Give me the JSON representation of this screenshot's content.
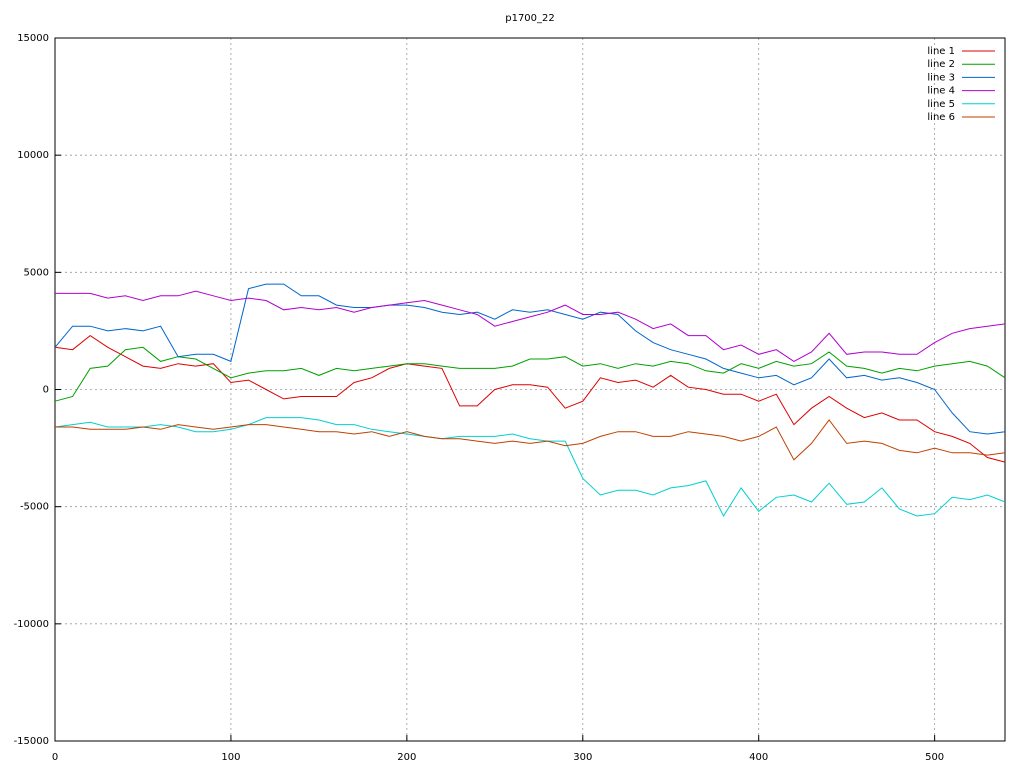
{
  "chart_data": {
    "type": "line",
    "title": "p1700_22",
    "x": [
      0,
      10,
      20,
      30,
      40,
      50,
      60,
      70,
      80,
      90,
      100,
      110,
      120,
      130,
      140,
      150,
      160,
      170,
      180,
      190,
      200,
      210,
      220,
      230,
      240,
      250,
      260,
      270,
      280,
      290,
      300,
      310,
      320,
      330,
      340,
      350,
      360,
      370,
      380,
      390,
      400,
      410,
      420,
      430,
      440,
      450,
      460,
      470,
      480,
      490,
      500,
      510,
      520,
      530,
      540
    ],
    "xlim": [
      0,
      540
    ],
    "ylim": [
      -15000,
      15000
    ],
    "xticks": [
      0,
      100,
      200,
      300,
      400,
      500
    ],
    "yticks": [
      -15000,
      -10000,
      -5000,
      0,
      5000,
      10000,
      15000
    ],
    "grid": true,
    "legend": "top-right",
    "series": [
      {
        "name": "line 1",
        "color": "#dd0000",
        "values": [
          1800,
          1700,
          2300,
          1800,
          1400,
          1000,
          900,
          1100,
          1000,
          1100,
          300,
          400,
          0,
          -400,
          -300,
          -300,
          -300,
          300,
          500,
          900,
          1100,
          1000,
          900,
          -700,
          -700,
          0,
          200,
          200,
          100,
          -800,
          -500,
          500,
          300,
          400,
          100,
          600,
          100,
          0,
          -200,
          -200,
          -500,
          -200,
          -1500,
          -800,
          -300,
          -800,
          -1200,
          -1000,
          -1300,
          -1300,
          -1800,
          -2000,
          -2300,
          -2900,
          -3100
        ]
      },
      {
        "name": "line 2",
        "color": "#00a000",
        "values": [
          -500,
          -300,
          900,
          1000,
          1700,
          1800,
          1200,
          1400,
          1300,
          900,
          500,
          700,
          800,
          800,
          900,
          600,
          900,
          800,
          900,
          1000,
          1100,
          1100,
          1000,
          900,
          900,
          900,
          1000,
          1300,
          1300,
          1400,
          1000,
          1100,
          900,
          1100,
          1000,
          1200,
          1100,
          800,
          700,
          1100,
          900,
          1200,
          1000,
          1100,
          1600,
          1000,
          900,
          700,
          900,
          800,
          1000,
          1100,
          1200,
          1000,
          500
        ]
      },
      {
        "name": "line 3",
        "color": "#0066cc",
        "values": [
          1800,
          2700,
          2700,
          2500,
          2600,
          2500,
          2700,
          1400,
          1500,
          1500,
          1200,
          4300,
          4500,
          4500,
          4000,
          4000,
          3600,
          3500,
          3500,
          3600,
          3600,
          3500,
          3300,
          3200,
          3300,
          3000,
          3400,
          3300,
          3400,
          3200,
          3000,
          3300,
          3200,
          2500,
          2000,
          1700,
          1500,
          1300,
          900,
          700,
          500,
          600,
          200,
          500,
          1300,
          500,
          600,
          400,
          500,
          300,
          0,
          -1000,
          -1800,
          -1900,
          -1800
        ]
      },
      {
        "name": "line 4",
        "color": "#b000d0",
        "values": [
          4100,
          4100,
          4100,
          3900,
          4000,
          3800,
          4000,
          4000,
          4200,
          4000,
          3800,
          3900,
          3800,
          3400,
          3500,
          3400,
          3500,
          3300,
          3500,
          3600,
          3700,
          3800,
          3600,
          3400,
          3200,
          2700,
          2900,
          3100,
          3300,
          3600,
          3200,
          3200,
          3300,
          3000,
          2600,
          2800,
          2300,
          2300,
          1700,
          1900,
          1500,
          1700,
          1200,
          1600,
          2400,
          1500,
          1600,
          1600,
          1500,
          1500,
          2000,
          2400,
          2600,
          2700,
          2800
        ]
      },
      {
        "name": "line 5",
        "color": "#00d0d0",
        "values": [
          -1600,
          -1500,
          -1400,
          -1600,
          -1600,
          -1600,
          -1500,
          -1600,
          -1800,
          -1800,
          -1700,
          -1500,
          -1200,
          -1200,
          -1200,
          -1300,
          -1500,
          -1500,
          -1700,
          -1800,
          -1900,
          -2000,
          -2100,
          -2000,
          -2000,
          -2000,
          -1900,
          -2100,
          -2200,
          -2200,
          -3800,
          -4500,
          -4300,
          -4300,
          -4500,
          -4200,
          -4100,
          -3900,
          -5400,
          -4200,
          -5200,
          -4600,
          -4500,
          -4800,
          -4000,
          -4900,
          -4800,
          -4200,
          -5100,
          -5400,
          -5300,
          -4600,
          -4700,
          -4500,
          -4800
        ]
      },
      {
        "name": "line 6",
        "color": "#c04000",
        "values": [
          -1600,
          -1600,
          -1700,
          -1700,
          -1700,
          -1600,
          -1700,
          -1500,
          -1600,
          -1700,
          -1600,
          -1500,
          -1500,
          -1600,
          -1700,
          -1800,
          -1800,
          -1900,
          -1800,
          -2000,
          -1800,
          -2000,
          -2100,
          -2100,
          -2200,
          -2300,
          -2200,
          -2300,
          -2200,
          -2400,
          -2300,
          -2000,
          -1800,
          -1800,
          -2000,
          -2000,
          -1800,
          -1900,
          -2000,
          -2200,
          -2000,
          -1600,
          -3000,
          -2300,
          -1300,
          -2300,
          -2200,
          -2300,
          -2600,
          -2700,
          -2500,
          -2700,
          -2700,
          -2800,
          -2700
        ]
      }
    ]
  }
}
